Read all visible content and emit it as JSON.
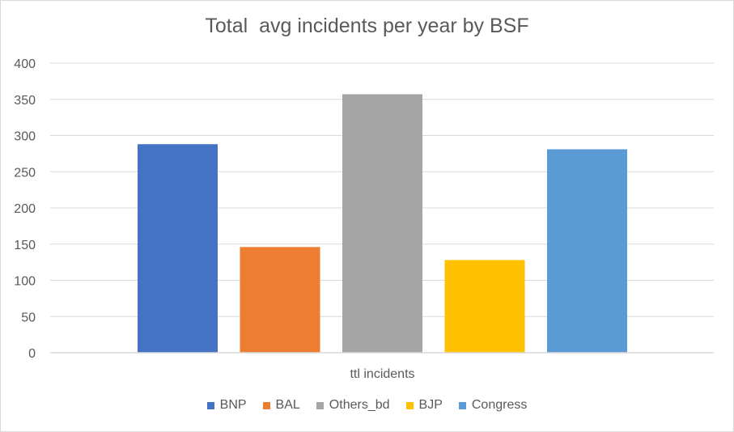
{
  "chart_data": {
    "type": "bar",
    "title": "Total  avg incidents per year by BSF",
    "categories": [
      "ttl incidents"
    ],
    "series": [
      {
        "name": "BNP",
        "values": [
          288
        ],
        "color": "#4472c4"
      },
      {
        "name": "BAL",
        "values": [
          146
        ],
        "color": "#ed7d31"
      },
      {
        "name": "Others_bd",
        "values": [
          357
        ],
        "color": "#a5a5a5"
      },
      {
        "name": "BJP",
        "values": [
          128
        ],
        "color": "#ffc000"
      },
      {
        "name": "Congress",
        "values": [
          281
        ],
        "color": "#5b9bd5"
      }
    ],
    "ylim": [
      0,
      400
    ],
    "yticks": [
      "0",
      "50",
      "100",
      "150",
      "200",
      "250",
      "300",
      "350",
      "400"
    ],
    "grid": true,
    "legend_position": "bottom",
    "gridline_color": "#d9d9d9",
    "text_color": "#595959"
  }
}
